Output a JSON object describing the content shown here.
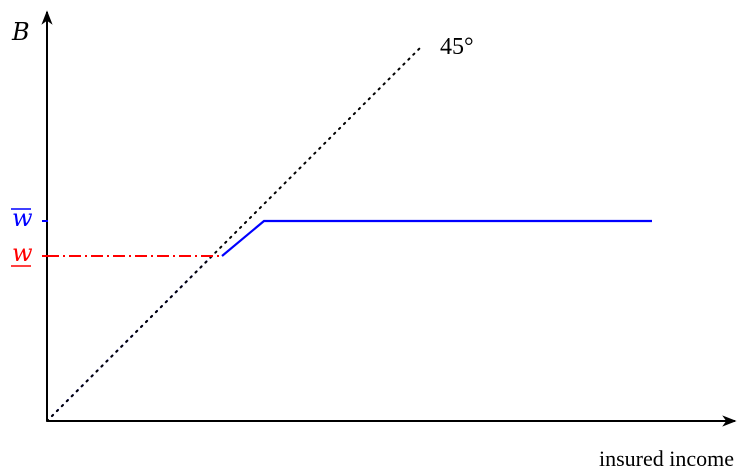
{
  "chart_data": {
    "type": "line",
    "ylabel": "B",
    "xlabel": "insured income",
    "annotations": {
      "angle_label": "45°"
    },
    "y_ticks": [
      {
        "text": "w",
        "decoration": "overline",
        "value": 2.0,
        "color": "#0000ff"
      },
      {
        "text": "w",
        "decoration": "underline",
        "value": 1.65,
        "color": "#ff0000"
      }
    ],
    "xlim": [
      0,
      6.4
    ],
    "ylim": [
      0,
      3.85
    ],
    "series": [
      {
        "style": "solid",
        "color": "#0000ff",
        "x": [
          1.75,
          2.17,
          6.05
        ],
        "y": [
          1.65,
          2.0,
          2.0
        ]
      },
      {
        "style": "dotted",
        "color": "#0000ff",
        "x": [
          0.05,
          1.65
        ],
        "y": [
          0.05,
          1.65
        ]
      },
      {
        "style": "dotted",
        "color": "#000000",
        "x": [
          0,
          3.75
        ],
        "y": [
          0,
          3.75
        ]
      },
      {
        "style": "dashdot",
        "color": "#ff0000",
        "x": [
          0,
          1.75
        ],
        "y": [
          1.65,
          1.65
        ]
      }
    ]
  }
}
